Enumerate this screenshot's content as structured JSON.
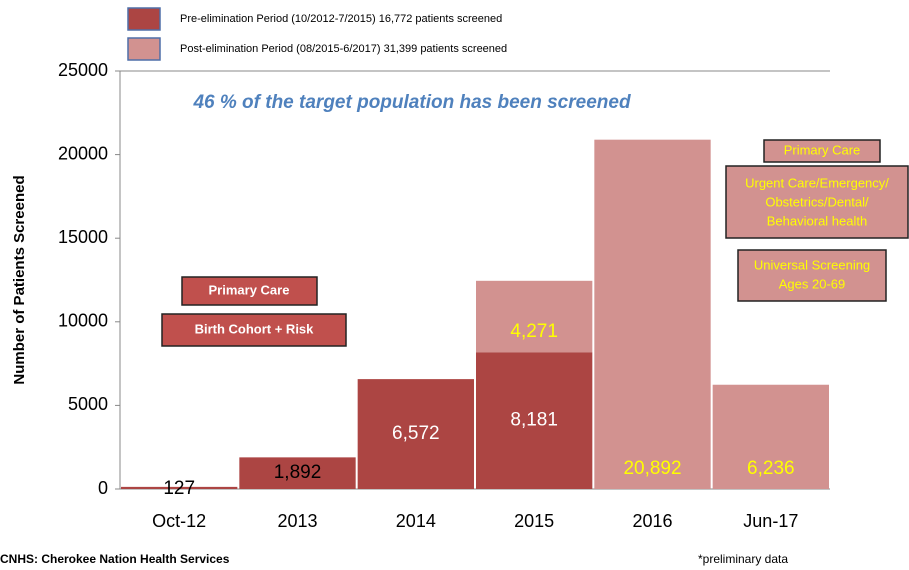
{
  "chart_data": {
    "type": "bar",
    "stacked": true,
    "annotation": "46 % of the target population has been screened",
    "ylabel": "Number of Patients Screened",
    "categories": [
      "Oct-12",
      "2013",
      "2014",
      "2015",
      "2016",
      "Jun-17"
    ],
    "series": [
      {
        "name": "Pre-elimination Period (10/2012-7/2015) 16,772 patients screened",
        "color": "#ac4543",
        "values": [
          127,
          1892,
          6572,
          8181,
          null,
          null
        ],
        "value_labels": [
          "127",
          "1,892",
          "6,572",
          "8,181",
          null,
          null
        ]
      },
      {
        "name": "Post-elimination Period (08/2015-6/2017) 31,399 patients screened",
        "color": "#d29290",
        "values": [
          null,
          null,
          null,
          4271,
          20892,
          6236
        ],
        "value_labels": [
          null,
          null,
          null,
          "4,271",
          "20,892",
          "6,236"
        ]
      }
    ],
    "ylim": [
      0,
      25000
    ],
    "yticks": [
      0,
      5000,
      10000,
      15000,
      20000,
      25000
    ],
    "boxes": [
      [
        "Primary Care"
      ],
      [
        "Birth Cohort + Risk"
      ],
      [
        "Primary Care"
      ],
      [
        "Urgent Care/Emergency/",
        "Obstetrics/Dental/",
        "Behavioral health"
      ],
      [
        "Universal Screening",
        "Ages 20-69"
      ]
    ],
    "source": "CNHS: Cherokee Nation Health Services",
    "note": "*preliminary data"
  }
}
